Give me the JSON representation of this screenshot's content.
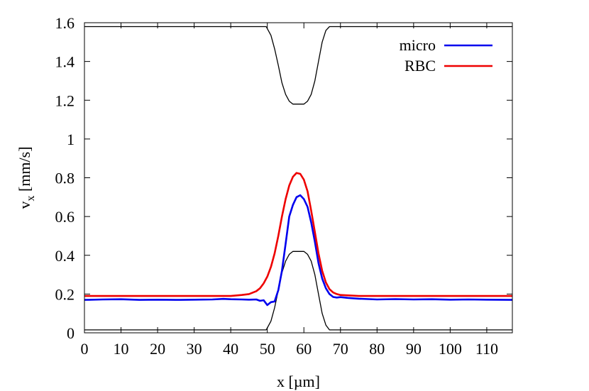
{
  "chart_data": {
    "type": "line",
    "xlabel": "x [µm]",
    "ylabel_main": "v",
    "ylabel_sub": "x",
    "ylabel_unit": " [mm/s]",
    "xlim": [
      0,
      117
    ],
    "ylim": [
      0,
      1.6
    ],
    "xticks": [
      0,
      10,
      20,
      30,
      40,
      50,
      60,
      70,
      80,
      90,
      100,
      110
    ],
    "xtick_labels": [
      "0",
      "10",
      "20",
      "30",
      "40",
      "50",
      "60",
      "70",
      "80",
      "90",
      "100",
      "110"
    ],
    "yticks": [
      0,
      0.2,
      0.4,
      0.6,
      0.8,
      1,
      1.2,
      1.4,
      1.6
    ],
    "ytick_labels": [
      "0",
      "0.2",
      "0.4",
      "0.6",
      "0.8",
      "1",
      "1.2",
      "1.4",
      "1.6"
    ],
    "grid": false,
    "legend_position": "top-right",
    "series": [
      {
        "name": "micro",
        "color": "#0000ee",
        "x": [
          0,
          5,
          10,
          15,
          20,
          25,
          30,
          35,
          38,
          40,
          43,
          45,
          47,
          48,
          49,
          50,
          51,
          52,
          53,
          54,
          55,
          56,
          57,
          58,
          59,
          60,
          61,
          62,
          63,
          64,
          65,
          66,
          67,
          68,
          69,
          70,
          72,
          75,
          80,
          85,
          90,
          95,
          100,
          105,
          110,
          117
        ],
        "y": [
          0.17,
          0.172,
          0.173,
          0.17,
          0.171,
          0.17,
          0.171,
          0.172,
          0.175,
          0.173,
          0.172,
          0.171,
          0.172,
          0.165,
          0.168,
          0.143,
          0.158,
          0.162,
          0.22,
          0.32,
          0.46,
          0.6,
          0.66,
          0.7,
          0.71,
          0.69,
          0.65,
          0.57,
          0.47,
          0.36,
          0.28,
          0.23,
          0.2,
          0.185,
          0.182,
          0.184,
          0.18,
          0.176,
          0.172,
          0.174,
          0.172,
          0.173,
          0.171,
          0.172,
          0.171,
          0.17
        ]
      },
      {
        "name": "RBC",
        "color": "#ee0000",
        "x": [
          0,
          10,
          20,
          30,
          40,
          43,
          45,
          47,
          48,
          49,
          50,
          51,
          52,
          53,
          54,
          55,
          56,
          57,
          58,
          59,
          60,
          61,
          62,
          63,
          64,
          65,
          66,
          67,
          68,
          69,
          70,
          75,
          80,
          90,
          100,
          110,
          117
        ],
        "y": [
          0.19,
          0.19,
          0.19,
          0.19,
          0.19,
          0.195,
          0.2,
          0.215,
          0.23,
          0.255,
          0.29,
          0.34,
          0.41,
          0.5,
          0.6,
          0.69,
          0.76,
          0.805,
          0.825,
          0.82,
          0.79,
          0.73,
          0.63,
          0.52,
          0.41,
          0.32,
          0.26,
          0.225,
          0.208,
          0.2,
          0.195,
          0.19,
          0.19,
          0.19,
          0.19,
          0.19,
          0.19
        ]
      }
    ],
    "geometry_lines": {
      "color": "#000000",
      "bottom": {
        "x": [
          0,
          49.7,
          51,
          52,
          53,
          54,
          55,
          56,
          57,
          58,
          59,
          60,
          61,
          62,
          63,
          64,
          65,
          66,
          67,
          67.6,
          117
        ],
        "y": [
          0.015,
          0.015,
          0.06,
          0.13,
          0.22,
          0.31,
          0.37,
          0.405,
          0.42,
          0.42,
          0.42,
          0.42,
          0.405,
          0.37,
          0.3,
          0.2,
          0.1,
          0.04,
          0.015,
          0.015,
          0.015
        ]
      },
      "top": {
        "x": [
          0,
          49.7,
          51,
          52,
          53,
          54,
          55,
          56,
          57,
          58,
          59,
          60,
          61,
          62,
          63,
          64,
          65,
          66,
          67,
          67.6,
          117
        ],
        "y": [
          1.58,
          1.58,
          1.535,
          1.465,
          1.38,
          1.29,
          1.23,
          1.195,
          1.18,
          1.18,
          1.18,
          1.18,
          1.195,
          1.23,
          1.3,
          1.4,
          1.5,
          1.56,
          1.58,
          1.58,
          1.58
        ]
      }
    }
  }
}
